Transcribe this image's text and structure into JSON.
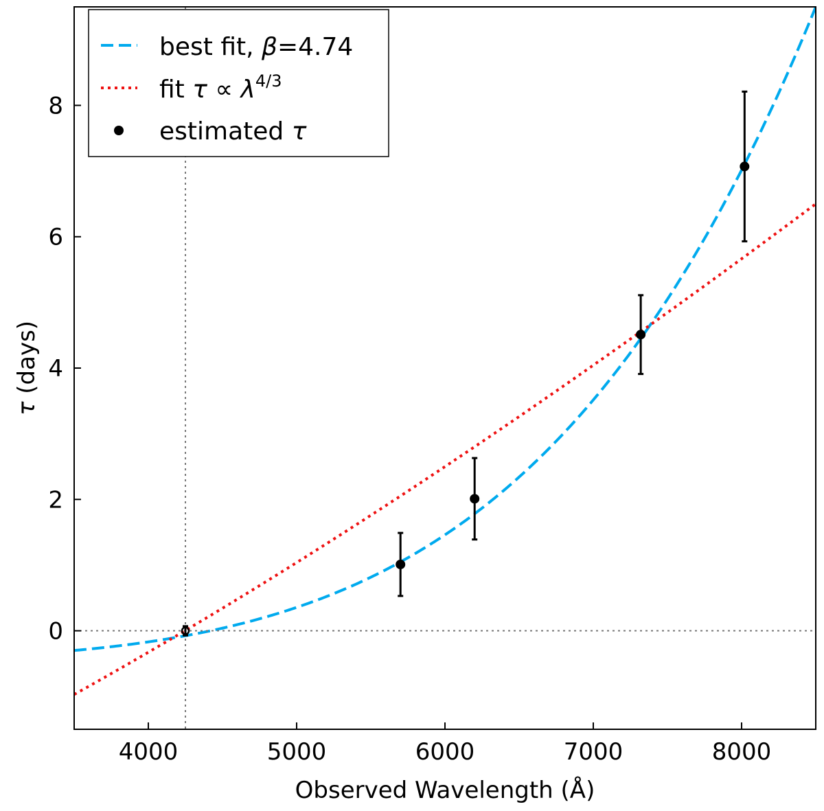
{
  "chart_data": {
    "type": "line",
    "title": "",
    "xlabel": "Observed Wavelength (Å)",
    "ylabel_symbol": "τ",
    "ylabel_rest": " (days)",
    "xlim": [
      3500,
      8500
    ],
    "ylim": [
      -1.5,
      9.5
    ],
    "xticks": [
      4000,
      5000,
      6000,
      7000,
      8000
    ],
    "yticks": [
      0,
      2,
      4,
      6,
      8
    ],
    "reference_lines": {
      "vertical_x": 4250,
      "horizontal_y": 0
    },
    "reference_wavelength": 4250,
    "series": [
      {
        "name": "best fit",
        "legend_prefix": "best fit, ",
        "legend_symbol": "β",
        "legend_suffix": "=4.74",
        "kind": "curve",
        "style": "dashed",
        "color": "#00aaee",
        "beta": 4.74,
        "x_range": [
          3500,
          8500
        ],
        "y_at_x_range": [
          -0.3,
          9.5
        ]
      },
      {
        "name": "fit τ ∝ λ^(4/3)",
        "legend_prefix": "fit ",
        "legend_symbol_tau": "τ",
        "legend_prop": " ∝ ",
        "legend_symbol_lambda": "λ",
        "legend_exponent": "4/3",
        "kind": "curve",
        "style": "dotted",
        "color": "#ee1111",
        "beta": 1.3333,
        "x_range": [
          3500,
          8500
        ],
        "y_at_x_range": [
          -0.97,
          6.5
        ]
      },
      {
        "name": "estimated τ",
        "legend_prefix": "estimated ",
        "legend_symbol": "τ",
        "kind": "errorbar",
        "color": "#000000",
        "points": [
          {
            "x": 4250,
            "y": 0.0,
            "err": 0.07,
            "hollow": true
          },
          {
            "x": 5700,
            "y": 1.01,
            "err": 0.48
          },
          {
            "x": 6200,
            "y": 2.01,
            "err": 0.62
          },
          {
            "x": 7320,
            "y": 4.51,
            "err": 0.6
          },
          {
            "x": 8020,
            "y": 7.07,
            "err": 1.14
          }
        ]
      }
    ],
    "legend_position": "top-left"
  }
}
